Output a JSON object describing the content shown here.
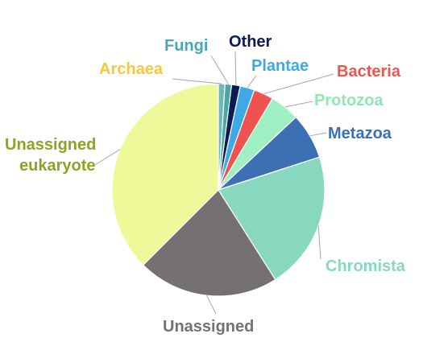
{
  "chart_data": {
    "type": "pie",
    "title": "",
    "slices": [
      {
        "label": "Archaea",
        "value": 1.0,
        "color": "#6fb9b5",
        "label_color": "#f5c842"
      },
      {
        "label": "Fungi",
        "value": 1.0,
        "color": "#49a7a8",
        "label_color": "#4da6b3"
      },
      {
        "label": "Other",
        "value": 1.3,
        "color": "#0d1b54",
        "label_color": "#0d1b54"
      },
      {
        "label": "Plantae",
        "value": 2.2,
        "color": "#3fa8e6",
        "label_color": "#3fa8e6"
      },
      {
        "label": "Bacteria",
        "value": 3.0,
        "color": "#ef5350",
        "label_color": "#ef5350"
      },
      {
        "label": "Protozoa",
        "value": 4.5,
        "color": "#9ff0c3",
        "label_color": "#8fe8b4"
      },
      {
        "label": "Metazoa",
        "value": 7.0,
        "color": "#3d6fb5",
        "label_color": "#3d6fb5"
      },
      {
        "label": "Chromista",
        "value": 21.0,
        "color": "#88d8c0",
        "label_color": "#88d8c0"
      },
      {
        "label": "Unassigned",
        "value": 21.5,
        "color": "#757170",
        "label_color": "#757170"
      },
      {
        "label": "Unassigned eukaryote",
        "value": 37.5,
        "color": "#eef99a",
        "label_color": "#8aa524"
      }
    ]
  }
}
